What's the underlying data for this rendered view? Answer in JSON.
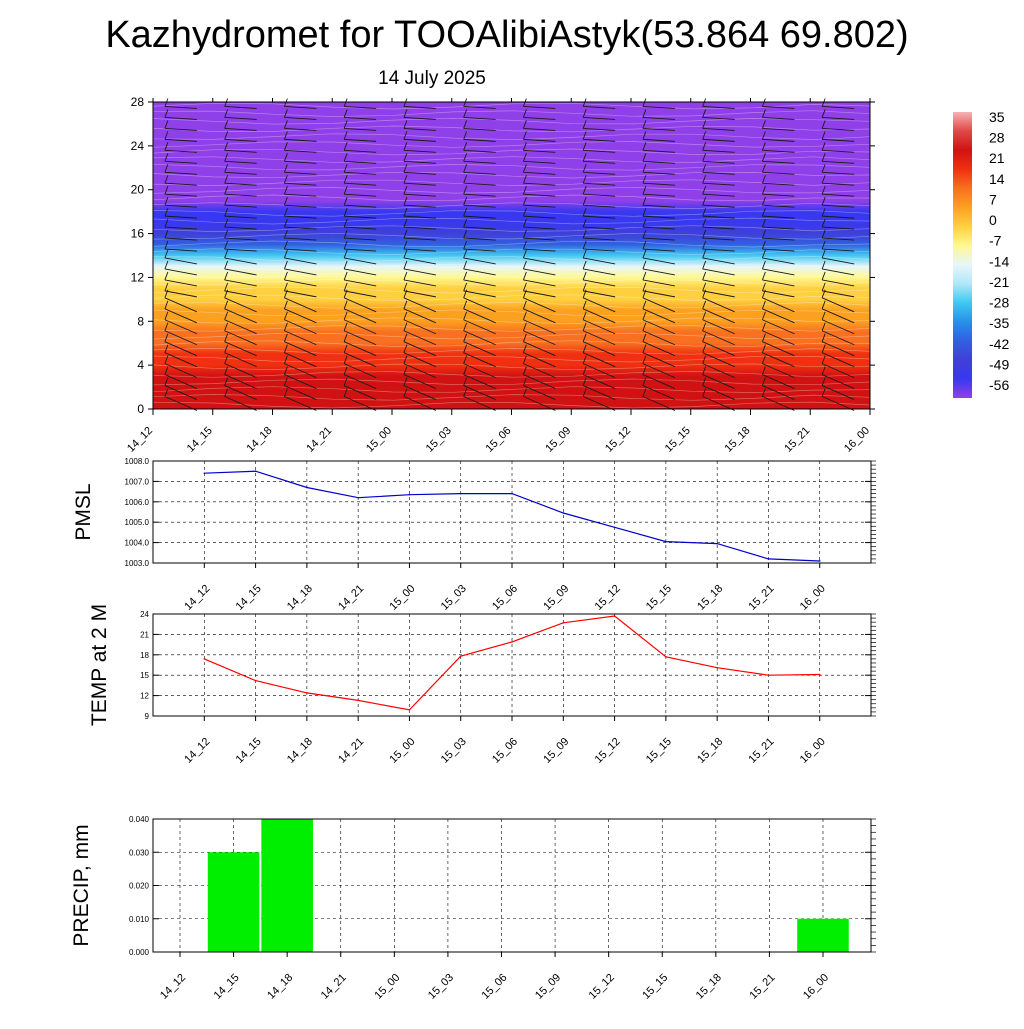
{
  "title": "Kazhydromet for TOOAlibiAstyk(53.864 69.802)",
  "subtitle": "14 July 2025",
  "times": [
    "14_12",
    "14_15",
    "14_18",
    "14_21",
    "15_00",
    "15_03",
    "15_06",
    "15_09",
    "15_12",
    "15_15",
    "15_18",
    "15_21",
    "16_00"
  ],
  "chart_data": [
    {
      "type": "heatmap",
      "name": "vertical cross-section",
      "xlabel": "",
      "ylabel": "",
      "yticks": [
        0,
        4,
        8,
        12,
        16,
        20,
        24,
        28
      ],
      "ylim": [
        0,
        28
      ],
      "levels": [
        0,
        1,
        2,
        3,
        4,
        5,
        6,
        7,
        8,
        9,
        10,
        11,
        12,
        13,
        14,
        15,
        16,
        17,
        18,
        19,
        20,
        21,
        22,
        23,
        24,
        25,
        26,
        27,
        28
      ],
      "temperature_profile": [
        24,
        23,
        22,
        20,
        18,
        16,
        13,
        10,
        7,
        4,
        1,
        -1,
        -6,
        -14,
        -25,
        -36,
        -44,
        -50,
        -52,
        -53,
        -54,
        -55,
        -55,
        -56,
        -56,
        -55,
        -55,
        -54,
        -54
      ],
      "colorbar": {
        "ticks": [
          35,
          28,
          21,
          14,
          7,
          0,
          -7,
          -14,
          -21,
          -28,
          -35,
          -42,
          -49,
          -56
        ],
        "colors": [
          "#f5b3b3",
          "#e04848",
          "#d11212",
          "#f03010",
          "#f87020",
          "#fca020",
          "#fed040",
          "#fff890",
          "#e8f6fa",
          "#b0e8f8",
          "#40c8f0",
          "#2890e8",
          "#3060e0",
          "#4040d8",
          "#3838f0",
          "#9040e8"
        ]
      },
      "wind_barbs": "present"
    },
    {
      "type": "line",
      "ylabel": "PMSL",
      "ylim": [
        1003.0,
        1008.0
      ],
      "yticks": [
        "1003.0",
        "1004.0",
        "1005.0",
        "1006.0",
        "1007.0",
        "1008.0"
      ],
      "series": [
        {
          "color": "#0000cc",
          "values": [
            1007.4,
            1007.5,
            1006.7,
            1006.2,
            1006.35,
            1006.4,
            1006.4,
            1005.45,
            1004.75,
            1004.05,
            1003.95,
            1003.2,
            1003.1
          ]
        }
      ]
    },
    {
      "type": "line",
      "ylabel": "TEMP at 2 M",
      "ylim": [
        9,
        24
      ],
      "yticks": [
        "9",
        "12",
        "15",
        "18",
        "21",
        "24"
      ],
      "series": [
        {
          "color": "#ff0000",
          "values": [
            17.4,
            14.2,
            12.4,
            11.3,
            9.9,
            17.8,
            19.9,
            22.7,
            23.7,
            17.7,
            16.1,
            15.0,
            15.1
          ]
        }
      ]
    },
    {
      "type": "bar",
      "ylabel": "PRECIP, mm",
      "ylim": [
        0,
        0.04
      ],
      "yticks": [
        "0.000",
        "0.010",
        "0.020",
        "0.030",
        "0.040"
      ],
      "color": "#00ee00",
      "values": [
        0,
        0.03,
        0.04,
        0,
        0,
        0,
        0,
        0,
        0,
        0,
        0,
        0,
        0.01
      ]
    }
  ]
}
